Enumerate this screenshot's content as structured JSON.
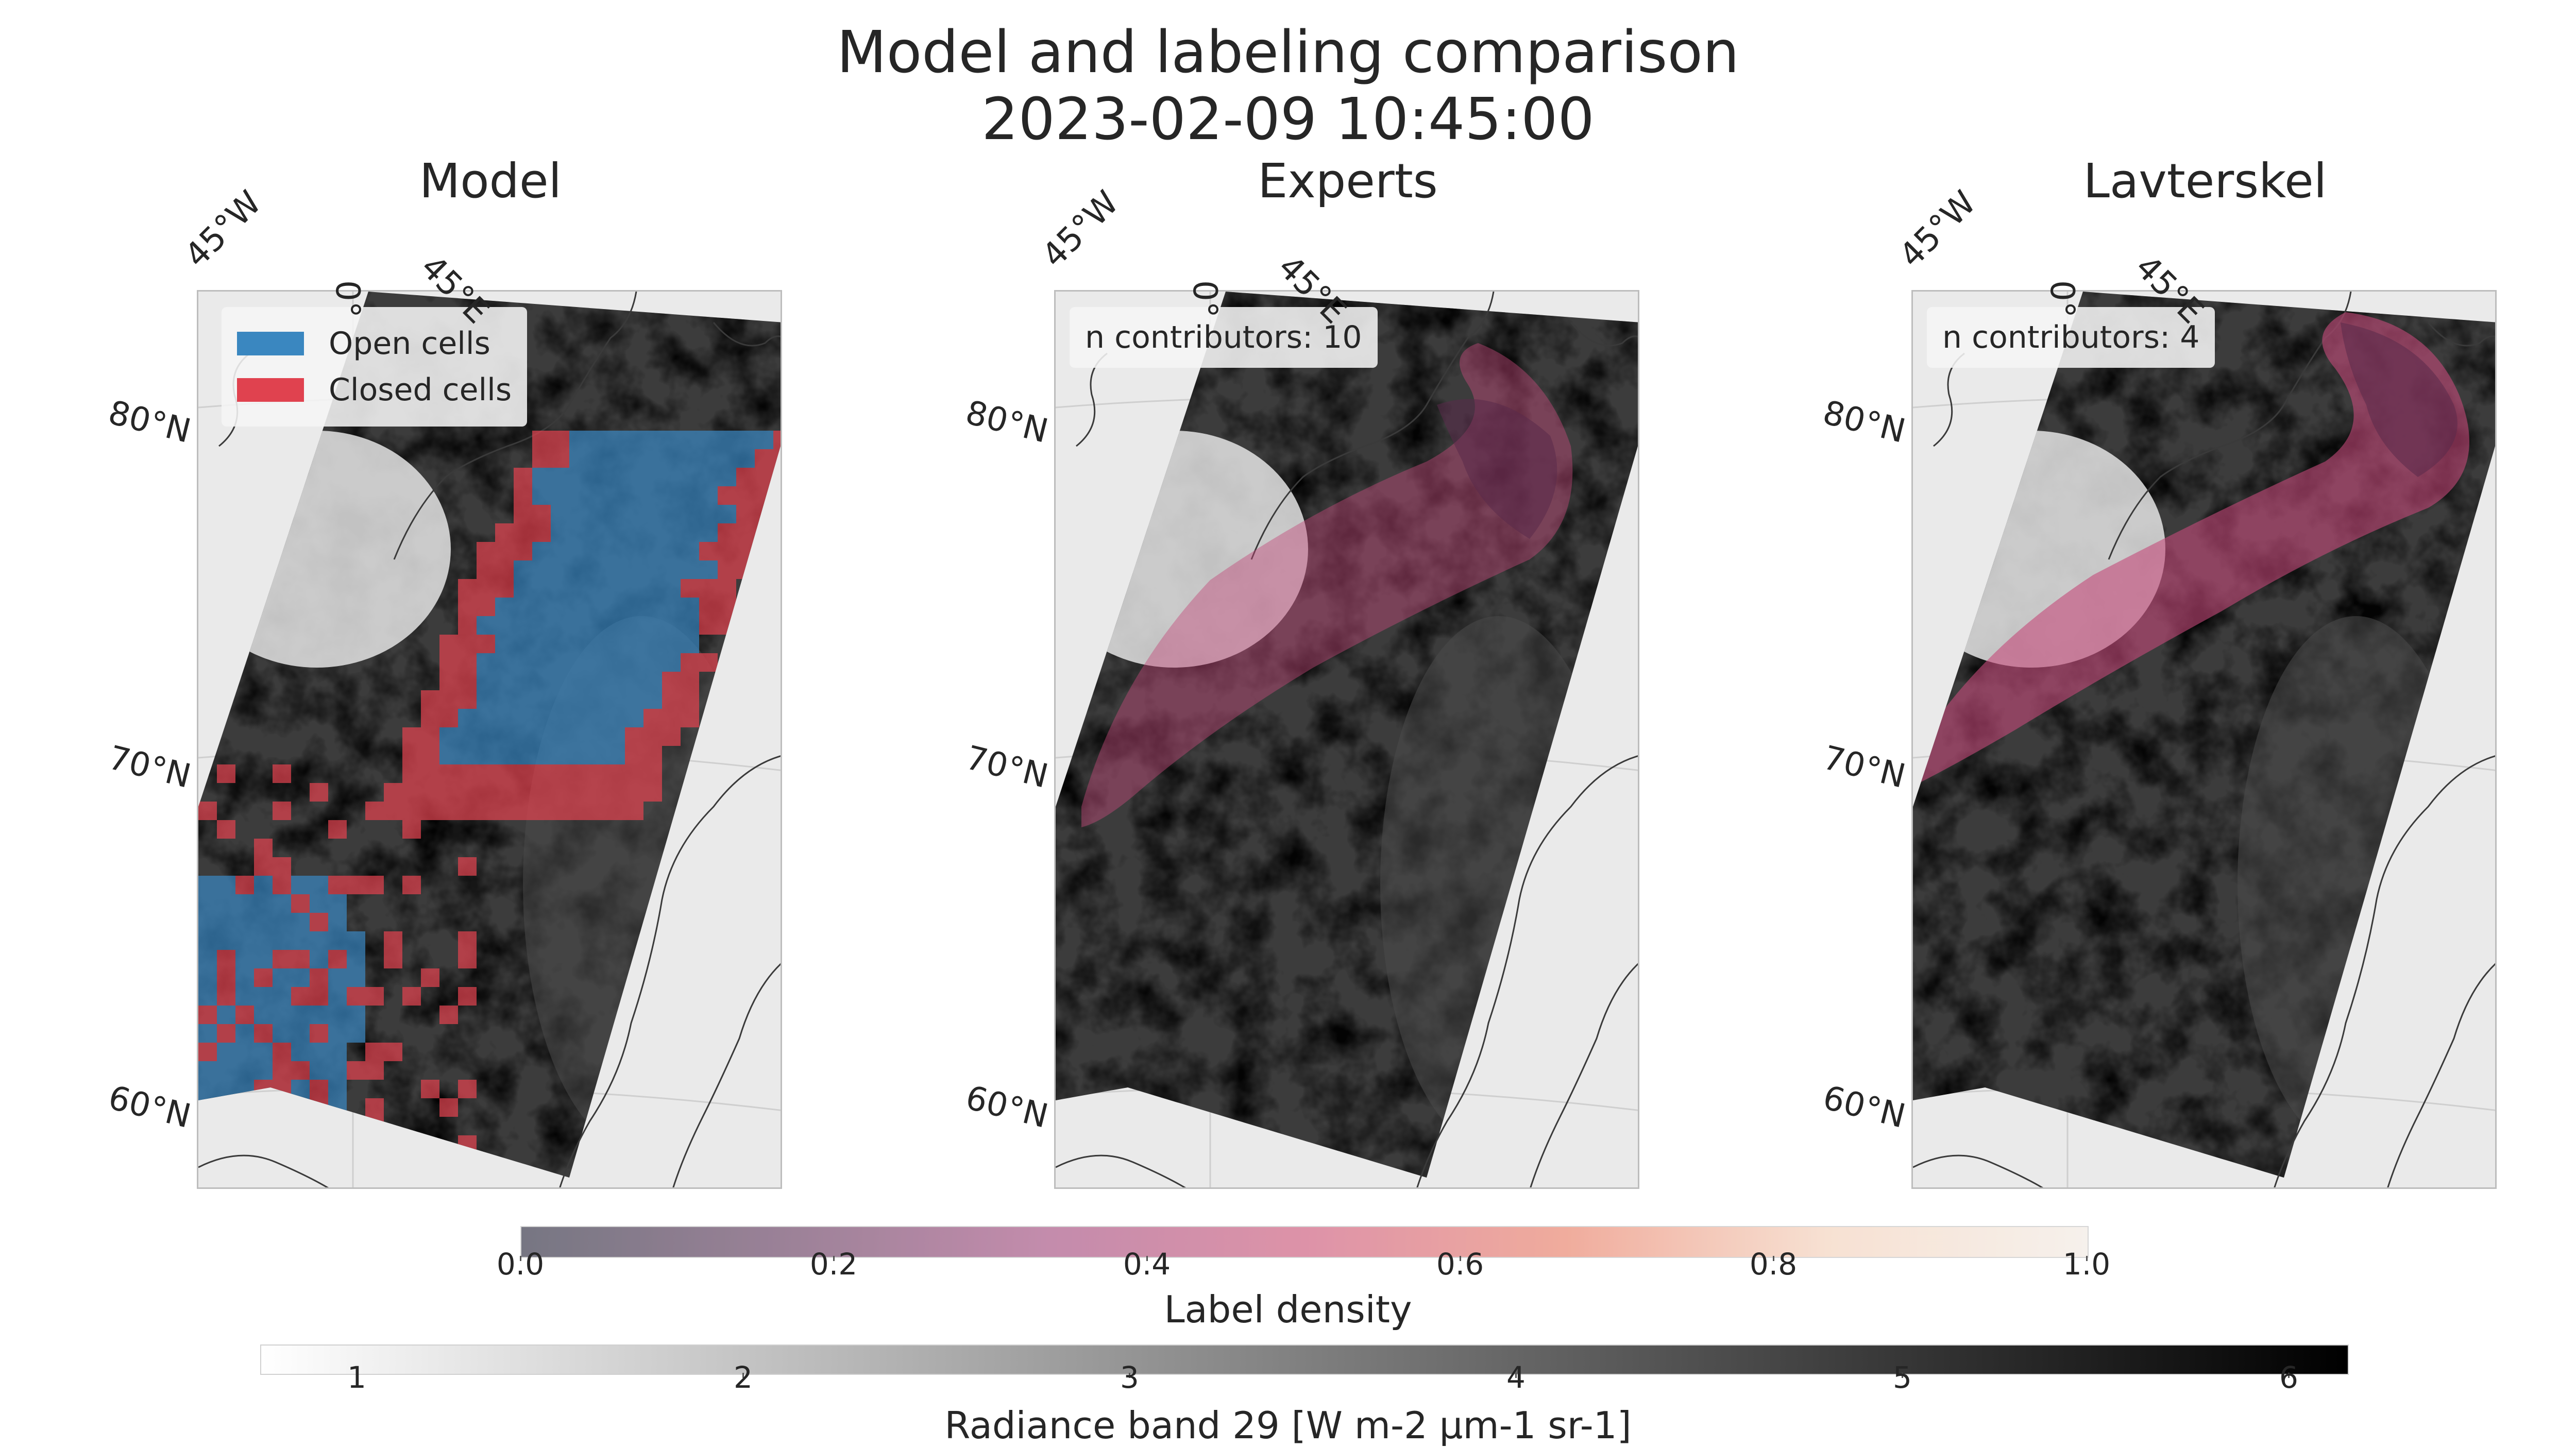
{
  "figure": {
    "title_line1": "Model and labeling comparison",
    "title_line2": "2023-02-09 10:45:00"
  },
  "chart_data": [
    {
      "type": "heatmap",
      "title": "Model",
      "lat_labels": [
        "80°N",
        "70°N",
        "60°N"
      ],
      "lon_labels": [
        "45°W",
        "0°",
        "45°E"
      ],
      "legend": [
        {
          "name": "Open cells",
          "color": "#3a87c0"
        },
        {
          "name": "Closed cells",
          "color": "#e0424f"
        }
      ]
    },
    {
      "type": "heatmap",
      "title": "Experts",
      "lat_labels": [
        "80°N",
        "70°N",
        "60°N"
      ],
      "lon_labels": [
        "45°W",
        "0°",
        "45°E"
      ],
      "annotation": "n contributors: 10"
    },
    {
      "type": "heatmap",
      "title": "Lavterskel",
      "lat_labels": [
        "80°N",
        "70°N",
        "60°N"
      ],
      "lon_labels": [
        "45°W",
        "0°",
        "45°E"
      ],
      "annotation": "n contributors: 4"
    }
  ],
  "colorbars": {
    "density": {
      "label": "Label density",
      "ticks": [
        "0.0",
        "0.2",
        "0.4",
        "0.6",
        "0.8",
        "1.0"
      ],
      "range": [
        0.0,
        1.0
      ],
      "colors": [
        "#5f5f6d",
        "#8a6c86",
        "#b9789e",
        "#d8809a",
        "#ee9e8c",
        "#f6dccb",
        "#f5efe9"
      ]
    },
    "radiance": {
      "label": "Radiance band 29 [W m-2 μm-1 sr-1]",
      "ticks": [
        "1",
        "2",
        "3",
        "4",
        "5",
        "6"
      ],
      "range": [
        0.75,
        6.15
      ],
      "colors": [
        "#ffffff",
        "#000000"
      ]
    }
  }
}
